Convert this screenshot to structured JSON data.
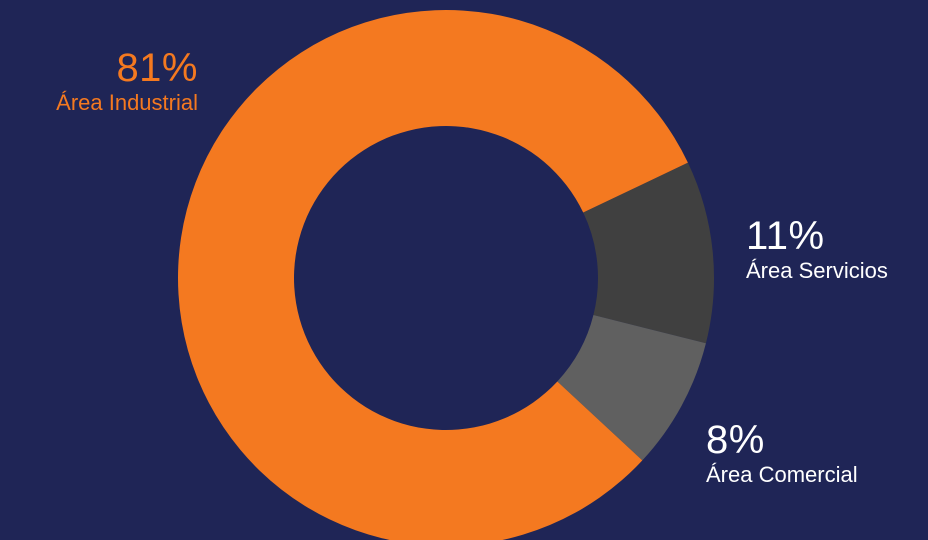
{
  "chart_data": {
    "type": "pie",
    "variant": "donut",
    "categories": [
      "Área Industrial",
      "Área Servicios",
      "Área Comercial"
    ],
    "values": [
      81,
      11,
      8
    ],
    "value_labels": [
      "81%",
      "11%",
      "8%"
    ],
    "colors": [
      "#f47920",
      "#404040",
      "#606060"
    ],
    "label_colors": [
      "#f47920",
      "#ffffff",
      "#ffffff"
    ],
    "background": "#1f2556",
    "title": "",
    "legend": "none"
  }
}
